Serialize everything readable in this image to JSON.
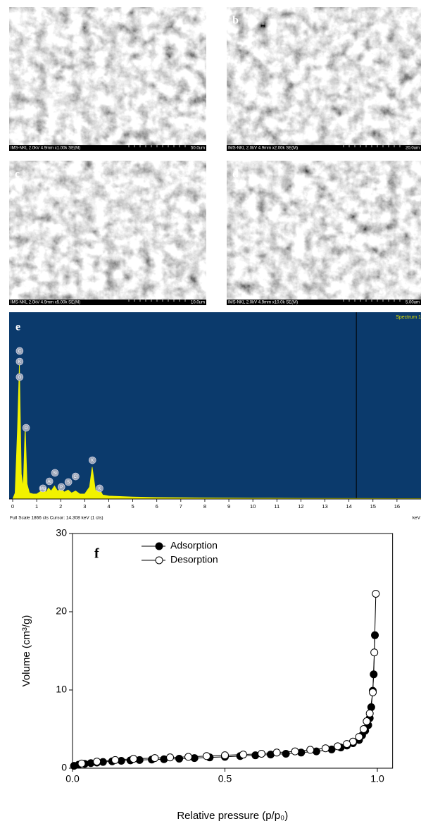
{
  "panels": [
    {
      "label": "a",
      "info": "IMS-NKL 2.0kV 4.9mm x1.00k SE(M)",
      "scale": "50.0um"
    },
    {
      "label": "b",
      "info": "IMS-NKL 2.0kV 4.9mm x2.00k SE(M)",
      "scale": "20.0um"
    },
    {
      "label": "c",
      "info": "IMS-NKL 2.0kV 4.9mm x5.00k SE(M)",
      "scale": "10.0um"
    },
    {
      "label": "d",
      "info": "IMS-NKL 2.0kV 4.9mm x10.0k SE(M)",
      "scale": "5.00um"
    }
  ],
  "chart_data": [
    {
      "type": "area",
      "label": "e",
      "corner_label": "Spectrum 1",
      "footer": "Full Scale 1866 cts  Cursor: 14.308 keV (1 cts)",
      "x_unit": "keV",
      "x": [
        0,
        0.1,
        0.2,
        0.28,
        0.36,
        0.44,
        0.52,
        0.6,
        0.7,
        0.85,
        1.0,
        1.25,
        1.4,
        1.49,
        1.6,
        1.74,
        1.87,
        2.01,
        2.15,
        2.31,
        2.45,
        2.62,
        2.8,
        3.0,
        3.2,
        3.31,
        3.45,
        3.59,
        3.75,
        4.0,
        5,
        6,
        8,
        10,
        12,
        14,
        16,
        17
      ],
      "values": [
        0,
        60,
        700,
        1360,
        250,
        120,
        740,
        150,
        60,
        50,
        50,
        90,
        70,
        110,
        80,
        130,
        80,
        100,
        70,
        90,
        60,
        80,
        50,
        50,
        120,
        320,
        80,
        110,
        40,
        30,
        20,
        15,
        10,
        8,
        6,
        5,
        4,
        4
      ],
      "color": "#f2f200",
      "background": "#0b3a6c",
      "xlim": [
        0,
        17
      ],
      "ylim": [
        0,
        1866
      ],
      "xticks": [
        0,
        1,
        2,
        3,
        4,
        5,
        6,
        7,
        8,
        9,
        10,
        11,
        12,
        13,
        14,
        15,
        16
      ],
      "cursor_x": 14.308,
      "annotations": [
        {
          "text": "C",
          "x": 0.29,
          "y": 1479
        },
        {
          "text": "K",
          "x": 0.29,
          "y": 1373
        },
        {
          "text": "O",
          "x": 0.29,
          "y": 1218
        },
        {
          "text": "O",
          "x": 0.56,
          "y": 711
        },
        {
          "text": "Mg",
          "x": 1.26,
          "y": 106
        },
        {
          "text": "Al",
          "x": 1.53,
          "y": 176
        },
        {
          "text": "Si",
          "x": 1.76,
          "y": 261
        },
        {
          "text": "P",
          "x": 2.03,
          "y": 120
        },
        {
          "text": "S",
          "x": 2.32,
          "y": 169
        },
        {
          "text": "Cl",
          "x": 2.62,
          "y": 225
        },
        {
          "text": "K",
          "x": 3.32,
          "y": 387
        },
        {
          "text": "K",
          "x": 3.62,
          "y": 106
        }
      ]
    },
    {
      "type": "scatter",
      "label": "f",
      "xlabel": "Relative pressure (p/p₀)",
      "ylabel": "Volume (cm³/g)",
      "xlim": [
        0,
        1.05
      ],
      "ylim": [
        0,
        30
      ],
      "xticks": [
        {
          "value": 0,
          "label": "0.0"
        },
        {
          "value": 0.5,
          "label": "0.5"
        },
        {
          "value": 1,
          "label": "1.0"
        }
      ],
      "yticks": [
        0,
        10,
        20,
        30
      ],
      "series": [
        {
          "name": "Adsorption",
          "color": "#000000",
          "fill": "#000000",
          "x": [
            0.005,
            0.02,
            0.04,
            0.06,
            0.08,
            0.1,
            0.13,
            0.16,
            0.19,
            0.22,
            0.26,
            0.3,
            0.35,
            0.4,
            0.45,
            0.5,
            0.55,
            0.6,
            0.65,
            0.7,
            0.75,
            0.8,
            0.85,
            0.88,
            0.9,
            0.92,
            0.94,
            0.95,
            0.96,
            0.97,
            0.975,
            0.98,
            0.985,
            0.988,
            0.992
          ],
          "values": [
            0.3,
            0.45,
            0.55,
            0.65,
            0.72,
            0.8,
            0.88,
            0.95,
            1.0,
            1.05,
            1.1,
            1.15,
            1.22,
            1.3,
            1.38,
            1.45,
            1.55,
            1.65,
            1.75,
            1.85,
            2.0,
            2.15,
            2.4,
            2.65,
            2.9,
            3.2,
            3.6,
            4.2,
            4.8,
            5.5,
            6.4,
            7.8,
            9.9,
            12.0,
            17.0
          ]
        },
        {
          "name": "Desorption",
          "color": "#000000",
          "fill": "#ffffff",
          "x": [
            0.995,
            0.99,
            0.985,
            0.975,
            0.965,
            0.955,
            0.94,
            0.92,
            0.9,
            0.87,
            0.83,
            0.78,
            0.73,
            0.67,
            0.62,
            0.56,
            0.5,
            0.44,
            0.38,
            0.32,
            0.27,
            0.2,
            0.14,
            0.08,
            0.03
          ],
          "values": [
            22.3,
            14.8,
            9.7,
            7.0,
            6.0,
            5.0,
            4.0,
            3.4,
            3.1,
            2.8,
            2.55,
            2.35,
            2.15,
            2.0,
            1.85,
            1.75,
            1.65,
            1.55,
            1.45,
            1.38,
            1.3,
            1.2,
            1.05,
            0.85,
            0.6
          ]
        }
      ]
    }
  ]
}
